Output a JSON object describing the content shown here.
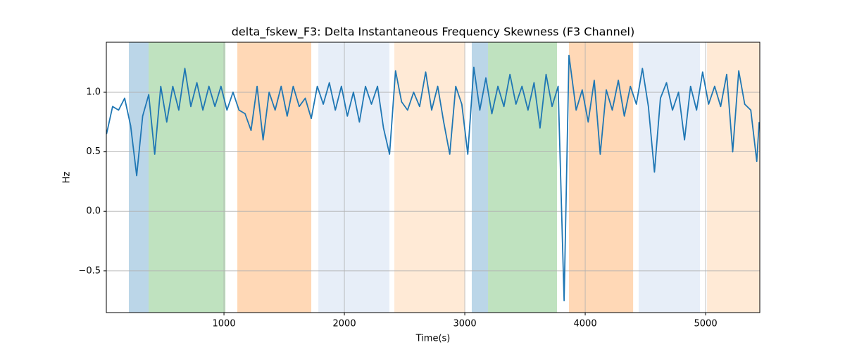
{
  "chart_data": {
    "type": "line",
    "title": "delta_fskew_F3: Delta Instantaneous Frequency Skewness (F3 Channel)",
    "xlabel": "Time(s)",
    "ylabel": "Hz",
    "xlim": [
      23,
      5450
    ],
    "ylim": [
      -0.85,
      1.42
    ],
    "xticks": [
      1000,
      2000,
      3000,
      4000,
      5000
    ],
    "yticks": [
      {
        "value": -0.5,
        "label": "−0.5"
      },
      {
        "value": 0,
        "label": "0.0"
      },
      {
        "value": 0.5,
        "label": "0.5"
      },
      {
        "value": 1,
        "label": "1.0"
      }
    ],
    "grid": true,
    "spans": [
      {
        "start": 210,
        "end": 374,
        "color": "#1f77b4"
      },
      {
        "start": 374,
        "end": 1012,
        "color": "#2ca02c"
      },
      {
        "start": 1111,
        "end": 1725,
        "color": "#ff7f0e"
      },
      {
        "start": 1784,
        "end": 2374,
        "color": "#aec7e8"
      },
      {
        "start": 2415,
        "end": 3000,
        "color": "#ffbb78"
      },
      {
        "start": 3058,
        "end": 3193,
        "color": "#1f77b4"
      },
      {
        "start": 3193,
        "end": 3766,
        "color": "#2ca02c"
      },
      {
        "start": 3865,
        "end": 4398,
        "color": "#ff7f0e"
      },
      {
        "start": 4444,
        "end": 4953,
        "color": "#aec7e8"
      },
      {
        "start": 5012,
        "end": 5450,
        "color": "#ffbb78"
      }
    ],
    "x": [
      25,
      75,
      125,
      175,
      225,
      275,
      325,
      375,
      425,
      475,
      525,
      575,
      625,
      675,
      725,
      775,
      825,
      875,
      925,
      975,
      1025,
      1075,
      1125,
      1175,
      1225,
      1275,
      1325,
      1375,
      1425,
      1475,
      1525,
      1575,
      1625,
      1675,
      1725,
      1775,
      1825,
      1875,
      1925,
      1975,
      2025,
      2075,
      2125,
      2175,
      2225,
      2275,
      2325,
      2375,
      2425,
      2475,
      2525,
      2575,
      2625,
      2675,
      2725,
      2775,
      2825,
      2875,
      2925,
      2975,
      3025,
      3075,
      3125,
      3175,
      3225,
      3275,
      3325,
      3375,
      3425,
      3475,
      3525,
      3575,
      3625,
      3675,
      3725,
      3775,
      3825,
      3865,
      3925,
      3975,
      4025,
      4075,
      4125,
      4175,
      4225,
      4275,
      4325,
      4375,
      4425,
      4475,
      4525,
      4575,
      4625,
      4675,
      4725,
      4775,
      4825,
      4875,
      4925,
      4975,
      5025,
      5075,
      5125,
      5175,
      5225,
      5275,
      5325,
      5375,
      5425,
      5445
    ],
    "series": [
      {
        "color": "#1f77b4",
        "values": [
          0.65,
          0.88,
          0.85,
          0.95,
          0.72,
          0.3,
          0.8,
          0.98,
          0.48,
          1.05,
          0.75,
          1.05,
          0.85,
          1.2,
          0.88,
          1.08,
          0.85,
          1.05,
          0.88,
          1.05,
          0.85,
          1.0,
          0.85,
          0.82,
          0.68,
          1.05,
          0.6,
          1.0,
          0.85,
          1.05,
          0.8,
          1.05,
          0.88,
          0.95,
          0.78,
          1.05,
          0.9,
          1.08,
          0.85,
          1.05,
          0.8,
          1.0,
          0.75,
          1.05,
          0.9,
          1.05,
          0.7,
          0.48,
          1.18,
          0.92,
          0.85,
          1.0,
          0.88,
          1.17,
          0.85,
          1.05,
          0.75,
          0.48,
          1.05,
          0.9,
          0.48,
          1.21,
          0.85,
          1.12,
          0.82,
          1.05,
          0.88,
          1.15,
          0.9,
          1.05,
          0.85,
          1.08,
          0.7,
          1.15,
          0.88,
          1.05,
          -0.75,
          1.31,
          0.85,
          1.02,
          0.75,
          1.1,
          0.48,
          1.02,
          0.85,
          1.1,
          0.8,
          1.05,
          0.9,
          1.2,
          0.88,
          0.33,
          0.95,
          1.08,
          0.85,
          1.0,
          0.6,
          1.05,
          0.85,
          1.17,
          0.9,
          1.05,
          0.88,
          1.15,
          0.5,
          1.18,
          0.9,
          0.85,
          0.42,
          0.75
        ]
      }
    ]
  }
}
